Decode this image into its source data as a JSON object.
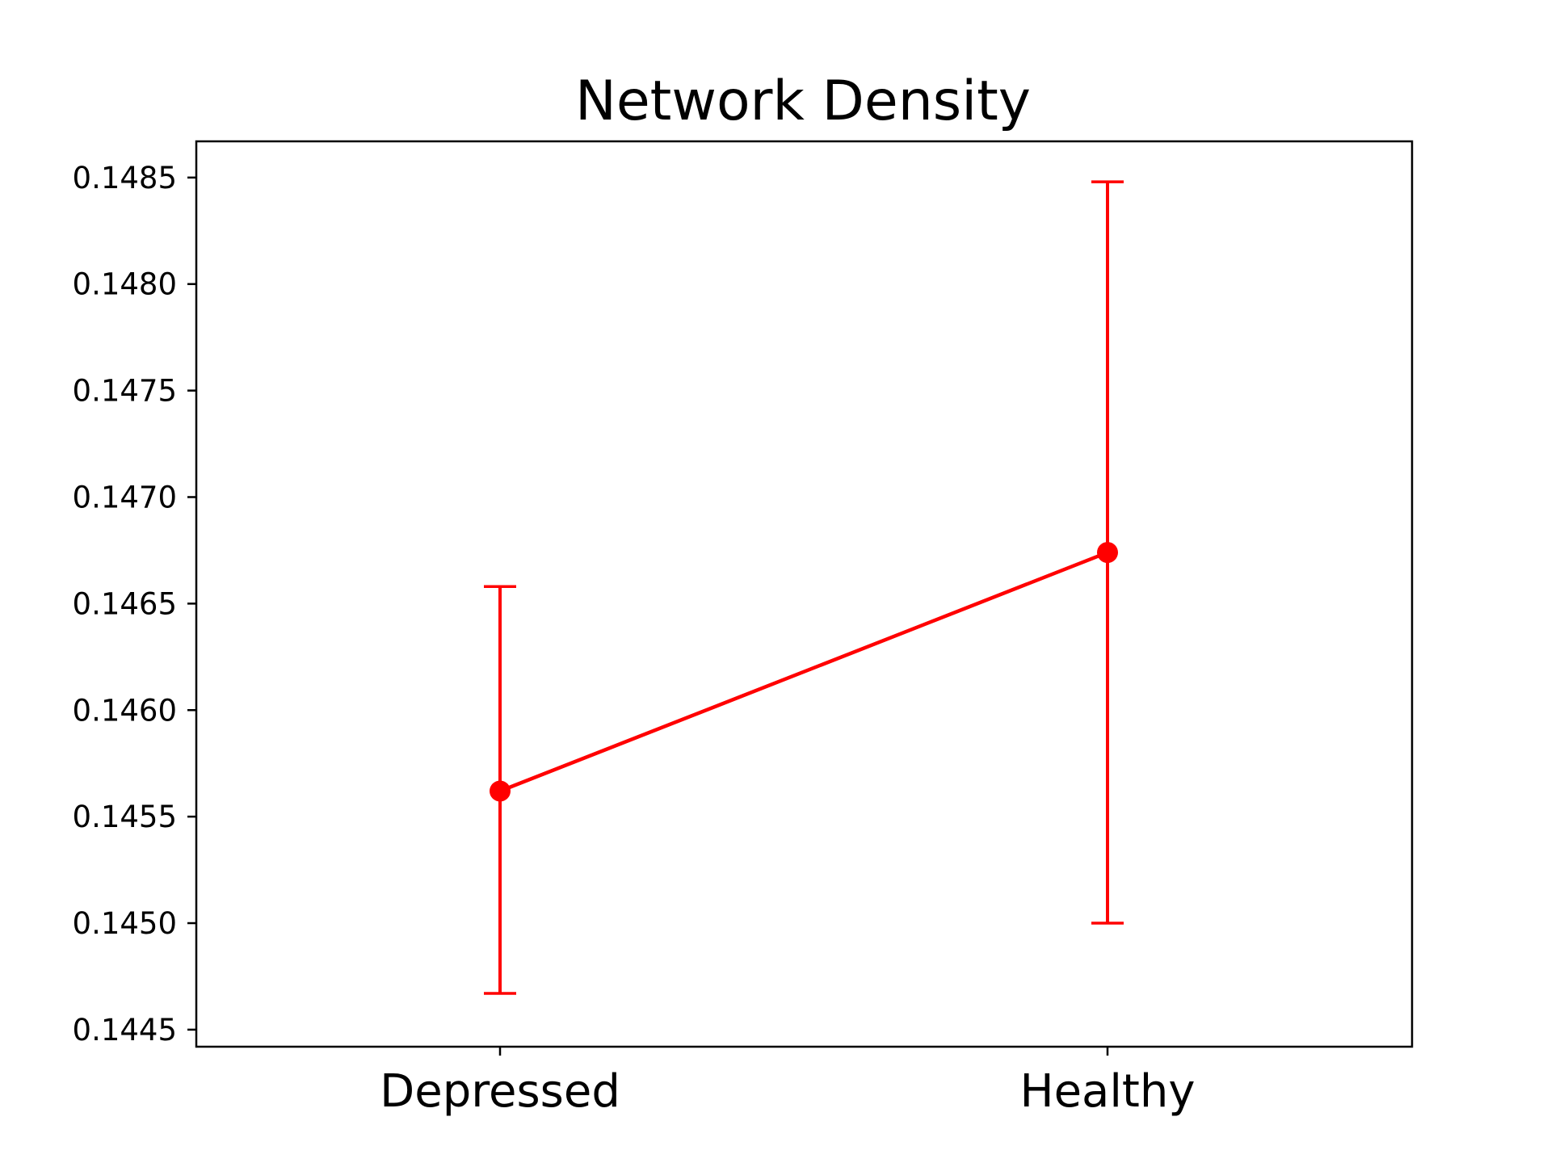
{
  "chart_data": {
    "type": "line",
    "title": "Network Density",
    "xlabel": "",
    "ylabel": "",
    "categories": [
      "Depressed",
      "Healthy"
    ],
    "series": [
      {
        "values": [
          0.14562,
          0.14674
        ],
        "error_lower": [
          0.14467,
          0.145
        ],
        "error_upper": [
          0.14658,
          0.14848
        ]
      }
    ],
    "ylim": [
      0.14442,
      0.14867
    ],
    "yticks": [
      "0.1445",
      "0.1450",
      "0.1455",
      "0.1460",
      "0.1465",
      "0.1470",
      "0.1475",
      "0.1480",
      "0.1485"
    ],
    "yticks_values": [
      0.1445,
      0.145,
      0.1455,
      0.146,
      0.1465,
      0.147,
      0.1475,
      0.148,
      0.1485
    ],
    "grid": false,
    "series_color": "#ff0000"
  }
}
